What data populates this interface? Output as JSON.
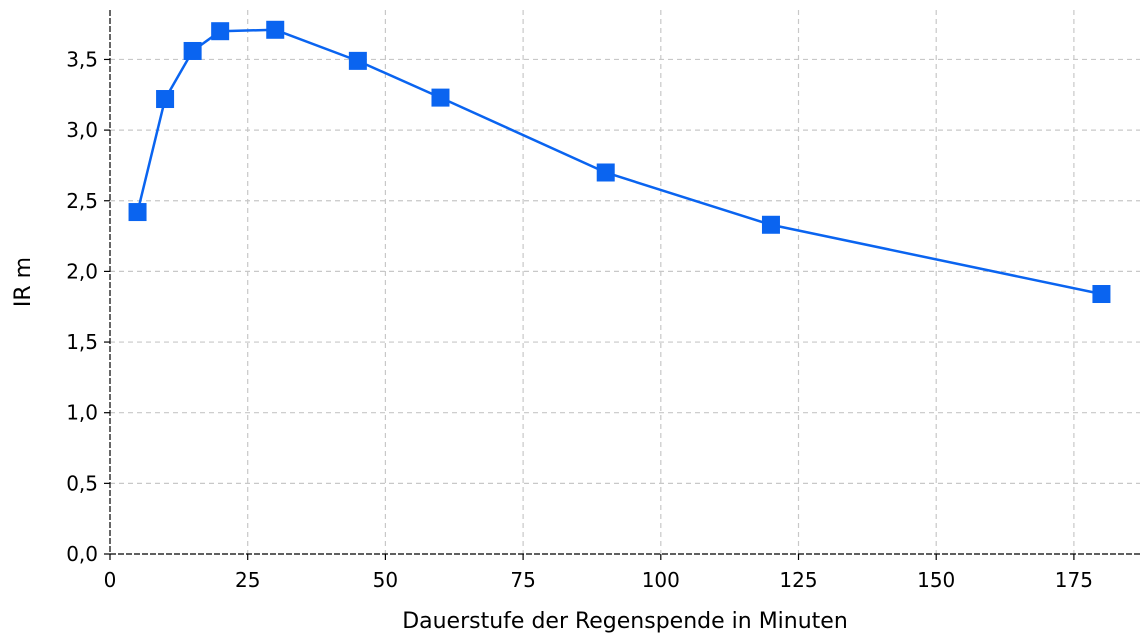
{
  "chart_data": {
    "type": "line",
    "title": "",
    "xlabel": "Dauerstufe der Regenspende in Minuten",
    "ylabel": "IR  m",
    "xlim": [
      0,
      187
    ],
    "ylim": [
      0,
      3.85
    ],
    "x_ticks": [
      0,
      25,
      50,
      75,
      100,
      125,
      150,
      175
    ],
    "y_ticks": [
      0.0,
      0.5,
      1.0,
      1.5,
      2.0,
      2.5,
      3.0,
      3.5
    ],
    "x_tick_labels": [
      "0",
      "25",
      "50",
      "75",
      "100",
      "125",
      "150",
      "175"
    ],
    "y_tick_labels": [
      "0,0",
      "0,5",
      "1,0",
      "1,5",
      "2,0",
      "2,5",
      "3,0",
      "3,5"
    ],
    "grid": true,
    "series": [
      {
        "color": "#0a64f0",
        "marker": "square",
        "x": [
          5,
          10,
          15,
          20,
          30,
          45,
          60,
          90,
          120,
          180
        ],
        "y": [
          2.42,
          3.22,
          3.56,
          3.7,
          3.71,
          3.49,
          3.23,
          2.7,
          2.33,
          1.84
        ]
      }
    ]
  }
}
